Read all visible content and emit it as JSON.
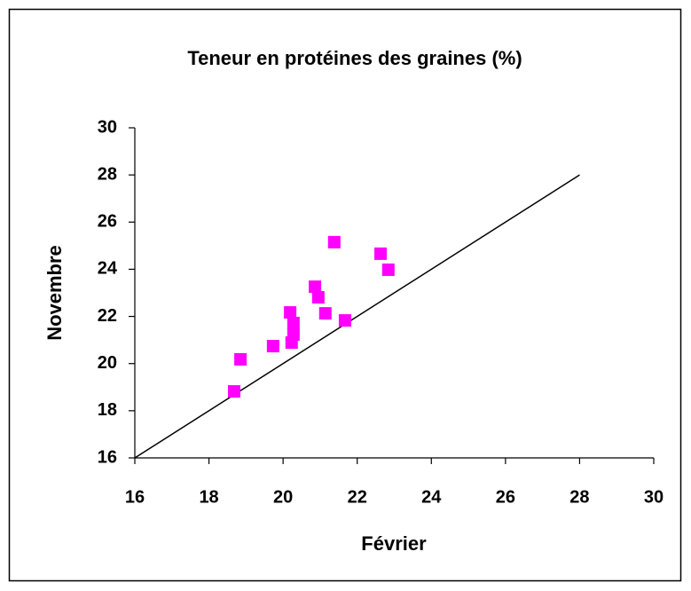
{
  "chart_data": {
    "type": "scatter",
    "title": "Teneur en protéines des graines (%)",
    "xlabel": "Février",
    "ylabel": "Novembre",
    "x": [
      18.68,
      18.85,
      19.73,
      20.19,
      20.28,
      20.28,
      20.23,
      20.86,
      20.95,
      21.14,
      21.38,
      21.67,
      22.63,
      22.84
    ],
    "y": [
      18.82,
      20.18,
      20.74,
      22.17,
      21.72,
      21.23,
      20.89,
      23.26,
      22.81,
      22.13,
      25.15,
      21.83,
      24.66,
      23.98
    ],
    "color": "#ff00ff",
    "line": {
      "x": [
        16,
        28
      ],
      "y": [
        16,
        28
      ],
      "color": "#000000"
    },
    "xlim": [
      16,
      30
    ],
    "ylim": [
      16,
      30
    ],
    "xticks": [
      16,
      18,
      20,
      22,
      24,
      26,
      28,
      30
    ],
    "yticks": [
      16,
      18,
      20,
      22,
      24,
      26,
      28,
      30
    ],
    "grid": false
  }
}
